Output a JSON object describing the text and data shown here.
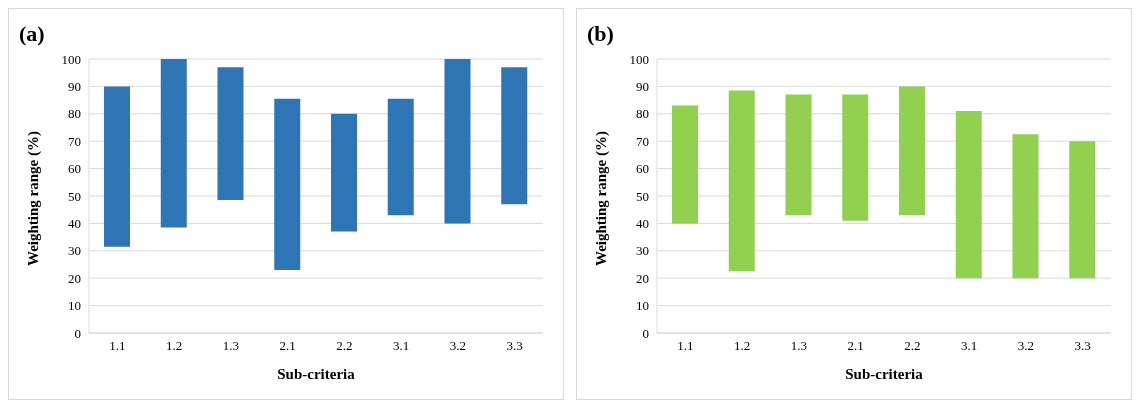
{
  "chart_data": [
    {
      "type": "bar",
      "title": "(a)",
      "xlabel": "Sub-criteria",
      "ylabel": "Weighting range (%)",
      "categories": [
        "1.1",
        "1.2",
        "1.3",
        "2.1",
        "2.2",
        "3.1",
        "3.2",
        "3.3"
      ],
      "base": [
        31.5,
        38.5,
        48.5,
        23,
        37,
        43,
        40,
        47
      ],
      "values": [
        58.5,
        61.5,
        48.5,
        62.5,
        43,
        42.5,
        60,
        50
      ],
      "color": "#2e75b6",
      "ylim": [
        0,
        100
      ],
      "yticks": [
        0,
        10,
        20,
        30,
        40,
        50,
        60,
        70,
        80,
        90,
        100
      ],
      "grid": "y",
      "legend": false
    },
    {
      "type": "bar",
      "title": "(b)",
      "xlabel": "Sub-criteria",
      "ylabel": "Weighting range (%)",
      "categories": [
        "1.1",
        "1.2",
        "1.3",
        "2.1",
        "2.2",
        "3.1",
        "3.2",
        "3.3"
      ],
      "base": [
        40,
        22.5,
        43,
        41,
        43,
        20,
        20,
        20
      ],
      "values": [
        43,
        66,
        44,
        46,
        47,
        61,
        52.5,
        50
      ],
      "color": "#92d050",
      "ylim": [
        0,
        100
      ],
      "yticks": [
        0,
        10,
        20,
        30,
        40,
        50,
        60,
        70,
        80,
        90,
        100
      ],
      "grid": "y",
      "legend": false
    }
  ]
}
